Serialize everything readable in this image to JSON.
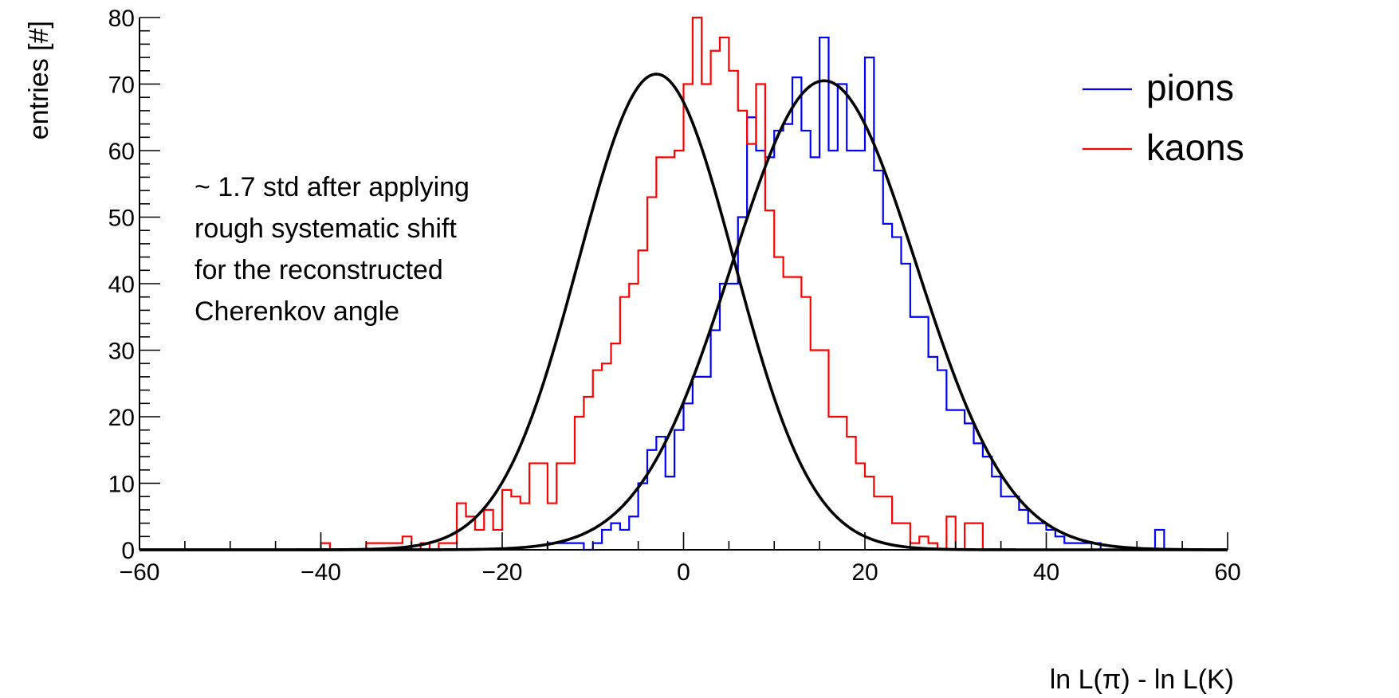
{
  "chart_data": {
    "type": "histogram",
    "title": "",
    "xlabel": "ln L(π) - ln L(K)",
    "ylabel": "entries [#]",
    "xlim": [
      -60,
      60
    ],
    "ylim": [
      0,
      80
    ],
    "x_major_ticks": [
      -60,
      -40,
      -20,
      0,
      20,
      40,
      60
    ],
    "y_major_ticks": [
      0,
      10,
      20,
      30,
      40,
      50,
      60,
      70,
      80
    ],
    "bin_width": 1,
    "legend": {
      "position": "top-right"
    },
    "annotation": {
      "lines": [
        "~ 1.7 std after applying",
        "rough systematic shift",
        "for the reconstructed",
        "Cherenkov angle"
      ]
    },
    "series": [
      {
        "name": "pions",
        "color": "#0000ff",
        "bins_start": -15,
        "counts": [
          1,
          1,
          1,
          1,
          0,
          1,
          3,
          4,
          3,
          5,
          10,
          15,
          17,
          11,
          18,
          22,
          26,
          26,
          33,
          40,
          40,
          50,
          65,
          60,
          59,
          63,
          64,
          71,
          63,
          59,
          77,
          60,
          70,
          60,
          60,
          74,
          57,
          49,
          47,
          43,
          35,
          35,
          29,
          27,
          21,
          21,
          19,
          16,
          14,
          11,
          8,
          8,
          6,
          4,
          4,
          3,
          2,
          1,
          1,
          1,
          1,
          0,
          0,
          0,
          0,
          0,
          0,
          3,
          0,
          0,
          0
        ]
      },
      {
        "name": "kaons",
        "color": "#ff0000",
        "bins_start": -40,
        "counts": [
          1,
          0,
          0,
          0,
          0,
          1,
          1,
          1,
          1,
          2,
          0,
          1,
          0,
          1,
          1,
          7,
          5,
          3,
          6,
          3,
          9,
          8,
          7,
          13,
          13,
          7,
          13,
          13,
          20,
          23,
          27,
          28,
          31,
          38,
          40,
          45,
          53,
          59,
          59,
          60,
          70,
          80,
          70,
          75,
          77,
          72,
          66,
          61,
          70,
          51,
          44,
          41,
          41,
          38,
          30,
          30,
          20,
          20,
          17,
          13,
          11,
          8,
          8,
          4,
          4,
          1,
          2,
          1,
          0,
          5,
          0,
          4,
          4,
          0
        ]
      },
      {
        "name": "pions-fit",
        "color": "#000000",
        "gaussian": {
          "amplitude": 70.5,
          "mean": 15.5,
          "sigma": 10.2
        }
      },
      {
        "name": "kaons-fit",
        "color": "#000000",
        "gaussian": {
          "amplitude": 71.5,
          "mean": -3.0,
          "sigma": 8.6
        }
      }
    ]
  }
}
